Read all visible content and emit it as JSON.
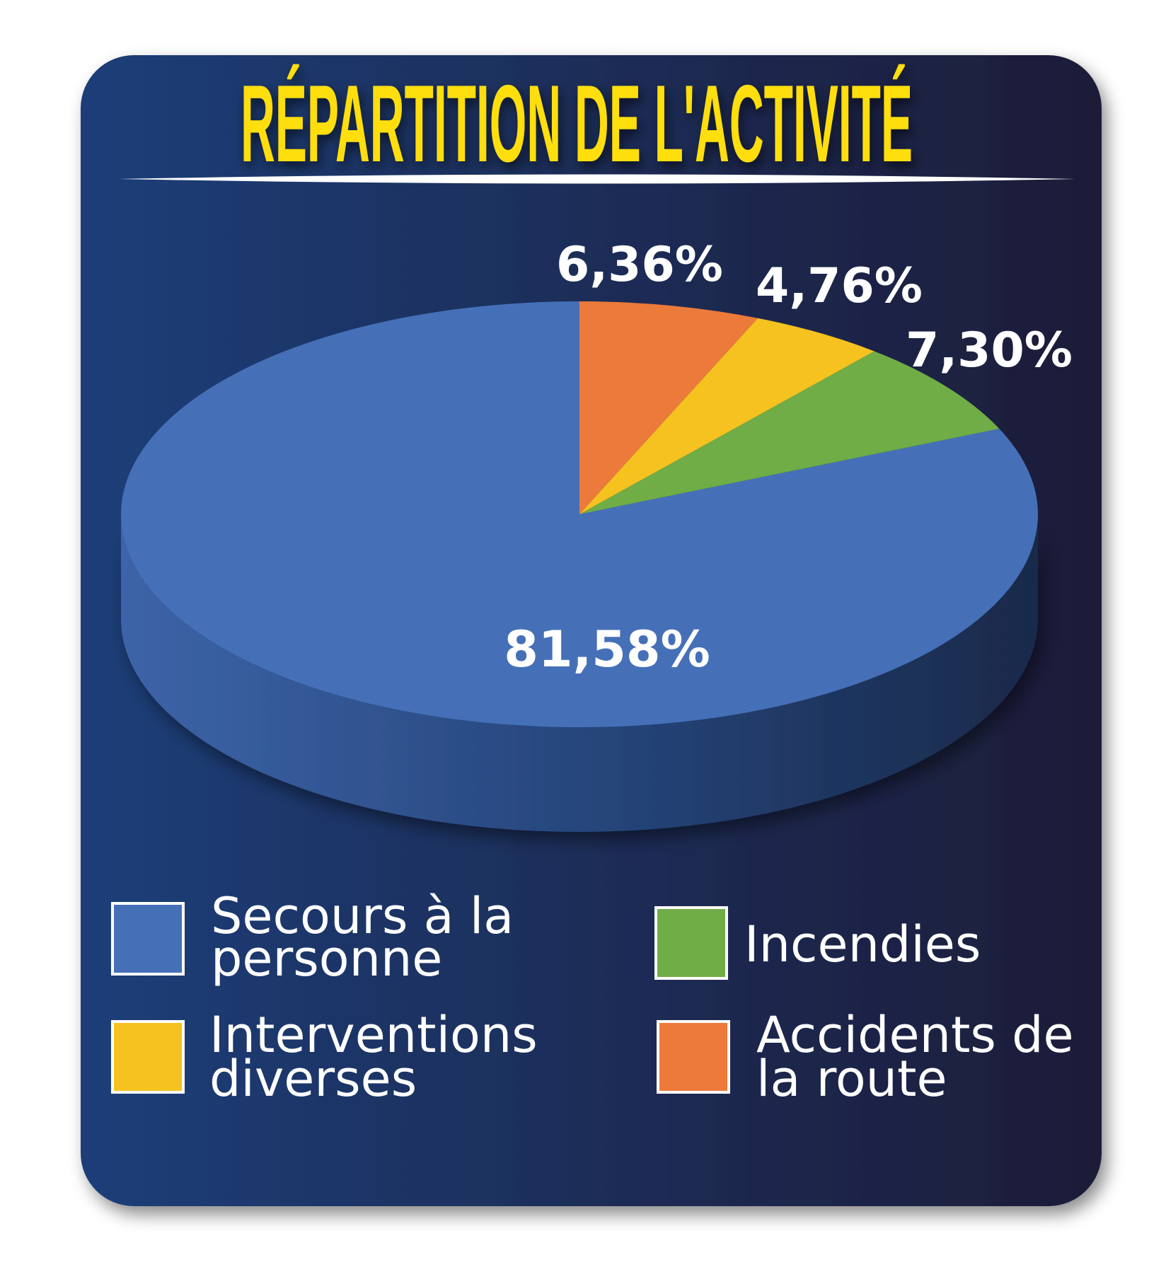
{
  "chart_data": {
    "type": "pie",
    "title": "Répartition de l'activité",
    "start": "top",
    "direction": "clockwise",
    "slices": [
      {
        "name": "Accidents de la route",
        "legend_lines": [
          "Accidents de",
          "la route"
        ],
        "value": 6.36,
        "label": "6,36%",
        "color": "#ec7a3a"
      },
      {
        "name": "Interventions diverses",
        "legend_lines": [
          "Interventions",
          "diverses"
        ],
        "value": 4.76,
        "label": "4,76%",
        "color": "#f5c21f"
      },
      {
        "name": "Incendies",
        "legend_lines": [
          "Incendies"
        ],
        "value": 7.3,
        "label": "7,30%",
        "color": "#70ad47"
      },
      {
        "name": "Secours à la personne",
        "legend_lines": [
          "Secours à la",
          "personne"
        ],
        "value": 81.58,
        "label": "81,58%",
        "color": "#4570b8"
      }
    ],
    "legend_placement": "bottom",
    "style": "3d"
  },
  "colors": {
    "title": "#ffde10",
    "card_start": "#1f3e78",
    "card_end": "#1b1c38"
  }
}
